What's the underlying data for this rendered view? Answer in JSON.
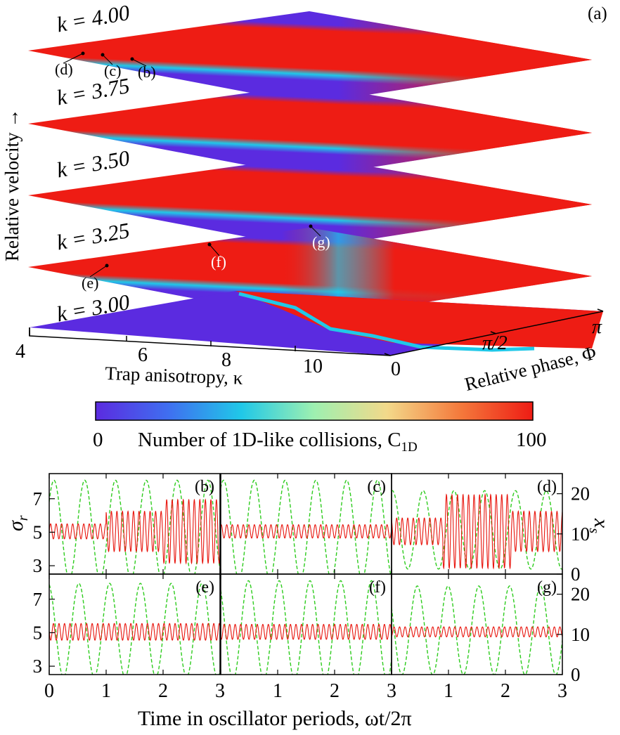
{
  "chart_data": [
    {
      "type": "heatmap",
      "panel_label": "(a)",
      "layers": [
        "k = 4.00",
        "k = 3.75",
        "k = 3.50",
        "k = 3.25",
        "k = 3.00"
      ],
      "xlabel": "Trap anisotropy, κ",
      "xticks": [
        "4",
        "6",
        "8",
        "10"
      ],
      "ylabel": "Relative phase, Φ",
      "yticks": [
        "0",
        "π/2",
        "π"
      ],
      "zlabel": "Relative velocity →",
      "colorbar": {
        "label": "Number of 1D-like collisions, C",
        "label_sub": "1D",
        "min": "0",
        "max": "100",
        "colors": [
          "#5b2be0",
          "#3f6ff0",
          "#20c8e8",
          "#9ef0b0",
          "#f3d98a",
          "#f47a3c",
          "#ee1c14"
        ]
      },
      "markers": [
        {
          "label": "(d)",
          "layer": 0
        },
        {
          "label": "(c)",
          "layer": 0
        },
        {
          "label": "(b)",
          "layer": 0
        },
        {
          "label": "(e)",
          "layer": 3
        },
        {
          "label": "(f)",
          "layer": 3
        },
        {
          "label": "(g)",
          "layer": 3
        }
      ]
    },
    {
      "type": "line",
      "panels": [
        "(b)",
        "(c)",
        "(d)",
        "(e)",
        "(f)",
        "(g)"
      ],
      "xlabel": "Time in oscillator periods, ωt/2π",
      "xticks": [
        "0",
        "1",
        "2",
        "3"
      ],
      "xlim": [
        0,
        3
      ],
      "ylabel_left": "σ",
      "ylabel_left_sub": "r",
      "yticks_left": [
        "3",
        "5",
        "7"
      ],
      "ylim_left": [
        2.5,
        8.5
      ],
      "ylabel_right": "x",
      "ylabel_right_sub": "s",
      "yticks_right": [
        "0",
        "10",
        "20"
      ],
      "ylim_right": [
        0,
        25
      ],
      "series_colors": {
        "sigma_r": "#e8140c",
        "x_s": "#2ecc1e"
      }
    }
  ]
}
